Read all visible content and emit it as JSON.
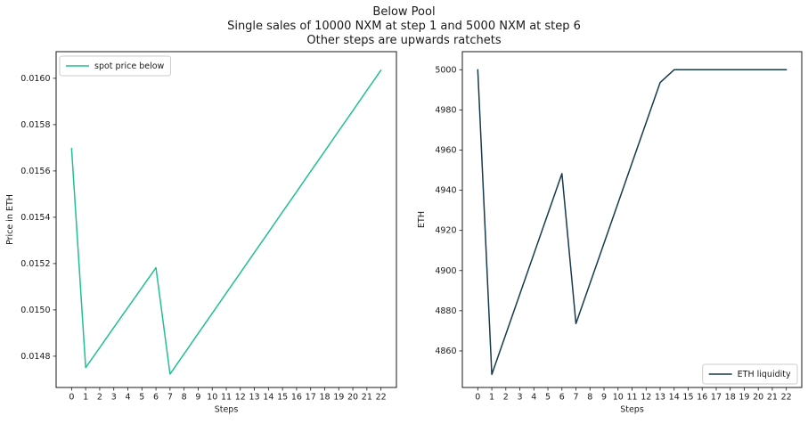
{
  "figure": {
    "title": "Below Pool\nSingle sales of 10000 NXM at step 1 and 5000 NXM at step 6\nOther steps are upwards ratchets",
    "background": "#ffffff",
    "text_color": "#1a1a1a"
  },
  "chart_data": [
    {
      "name": "spot-price-chart",
      "type": "line",
      "xlabel": "Steps",
      "ylabel": "Price in ETH",
      "x": [
        0,
        1,
        2,
        3,
        4,
        5,
        6,
        7,
        8,
        9,
        10,
        11,
        12,
        13,
        14,
        15,
        16,
        17,
        18,
        19,
        20,
        21,
        22
      ],
      "series": [
        {
          "name": "spot price below",
          "color": "#22bf94",
          "values": [
            0.015697,
            0.014751,
            0.014837,
            0.014924,
            0.01501,
            0.015096,
            0.015182,
            0.014723,
            0.01481,
            0.014898,
            0.014985,
            0.015073,
            0.01516,
            0.015248,
            0.015335,
            0.015423,
            0.01551,
            0.015598,
            0.015685,
            0.015773,
            0.01586,
            0.015948,
            0.016035
          ]
        }
      ],
      "xlim": [
        -1.1,
        23.1
      ],
      "ylim": [
        0.014665,
        0.016115
      ],
      "xticks": [
        0,
        1,
        2,
        3,
        4,
        5,
        6,
        7,
        8,
        9,
        10,
        11,
        12,
        13,
        14,
        15,
        16,
        17,
        18,
        19,
        20,
        21,
        22
      ],
      "xtick_labels": [
        "0",
        "1",
        "2",
        "3",
        "4",
        "5",
        "6",
        "7",
        "8",
        "9",
        "10",
        "11",
        "12",
        "13",
        "14",
        "15",
        "16",
        "17",
        "18",
        "19",
        "20",
        "21",
        "22"
      ],
      "yticks": [
        0.0148,
        0.015,
        0.0152,
        0.0154,
        0.0156,
        0.0158,
        0.016
      ],
      "ytick_labels": [
        "0.0148",
        "0.0150",
        "0.0152",
        "0.0154",
        "0.0156",
        "0.0158",
        "0.0160"
      ],
      "grid": false,
      "legend": {
        "position": "upper-left",
        "labels": [
          "spot price below"
        ]
      }
    },
    {
      "name": "eth-liquidity-chart",
      "type": "line",
      "xlabel": "Steps",
      "ylabel": "ETH",
      "x": [
        0,
        1,
        2,
        3,
        4,
        5,
        6,
        7,
        8,
        9,
        10,
        11,
        12,
        13,
        14,
        15,
        16,
        17,
        18,
        19,
        20,
        21,
        22
      ],
      "series": [
        {
          "name": "ETH liquidity",
          "color": "#163b4d",
          "values": [
            5000,
            4848.3,
            4868.3,
            4888.3,
            4908.3,
            4928.3,
            4948.3,
            4873.6,
            4893.6,
            4913.6,
            4933.6,
            4953.6,
            4973.6,
            4993.6,
            5000,
            5000,
            5000,
            5000,
            5000,
            5000,
            5000,
            5000,
            5000
          ]
        }
      ],
      "xlim": [
        -1.1,
        23.1
      ],
      "ylim": [
        4841.8,
        5009.0
      ],
      "xticks": [
        0,
        1,
        2,
        3,
        4,
        5,
        6,
        7,
        8,
        9,
        10,
        11,
        12,
        13,
        14,
        15,
        16,
        17,
        18,
        19,
        20,
        21,
        22
      ],
      "xtick_labels": [
        "0",
        "1",
        "2",
        "3",
        "4",
        "5",
        "6",
        "7",
        "8",
        "9",
        "10",
        "11",
        "12",
        "13",
        "14",
        "15",
        "16",
        "17",
        "18",
        "19",
        "20",
        "21",
        "22"
      ],
      "yticks": [
        4860,
        4880,
        4900,
        4920,
        4940,
        4960,
        4980,
        5000
      ],
      "ytick_labels": [
        "4860",
        "4880",
        "4900",
        "4920",
        "4940",
        "4960",
        "4980",
        "5000"
      ],
      "grid": false,
      "legend": {
        "position": "lower-right",
        "labels": [
          "ETH liquidity"
        ]
      }
    }
  ]
}
